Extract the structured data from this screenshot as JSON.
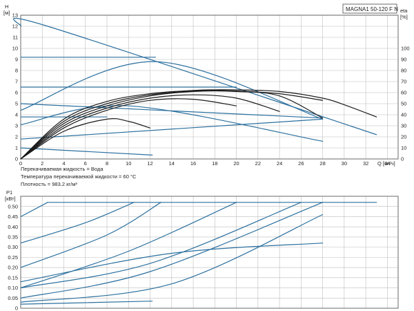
{
  "model_box": {
    "text": "MAGNA1 50-120 F N"
  },
  "fluid_notes": [
    "Перекачиваемая жидкость = Вода",
    "Температура перекачиваемой жидкости = 60 °C",
    "Плотность = 983.2 кг/м³"
  ],
  "colors": {
    "blue": "#2a6f9e",
    "black": "#1a1a1a",
    "grid": "#bdbdbd"
  },
  "chart_data": [
    {
      "type": "line",
      "name": "head",
      "ylabel_lines": [
        "H",
        "[м]"
      ],
      "y2label_lines": [
        "eta",
        "[%]"
      ],
      "xlabel": "Q [м³/ч]",
      "xlim": [
        0,
        35
      ],
      "ylim": [
        0,
        13
      ],
      "y2lim": [
        0,
        130
      ],
      "xticks": [
        0,
        2,
        4,
        6,
        8,
        10,
        12,
        14,
        16,
        18,
        20,
        22,
        24,
        26,
        28,
        30,
        32,
        34
      ],
      "yticks": [
        0,
        1,
        2,
        3,
        4,
        5,
        6,
        7,
        8,
        9,
        10,
        11,
        12,
        13
      ],
      "y2ticks": [
        0,
        10,
        20,
        30,
        40,
        50,
        60,
        70,
        80,
        90,
        100
      ],
      "series": [
        {
          "kind": "blue",
          "x": [
            0,
            2.5,
            33
          ],
          "y": [
            12,
            12,
            2.2
          ]
        },
        {
          "kind": "blue",
          "x": [
            0,
            12.5
          ],
          "y": [
            9.2,
            9.2
          ]
        },
        {
          "kind": "blue",
          "x": [
            0,
            12.5,
            28
          ],
          "y": [
            4.4,
            8.8,
            3.6
          ]
        },
        {
          "kind": "blue",
          "x": [
            0,
            20
          ],
          "y": [
            6.5,
            6.5
          ]
        },
        {
          "kind": "blue",
          "x": [
            0,
            10,
            28
          ],
          "y": [
            3.1,
            4.8,
            1.6
          ]
        },
        {
          "kind": "blue",
          "x": [
            0,
            28
          ],
          "y": [
            5.0,
            3.7
          ]
        },
        {
          "kind": "blue",
          "x": [
            0,
            8
          ],
          "y": [
            3.8,
            3.8
          ]
        },
        {
          "kind": "blue",
          "x": [
            0,
            28
          ],
          "y": [
            1.8,
            3.6
          ]
        },
        {
          "kind": "blue",
          "x": [
            0,
            12.2
          ],
          "y": [
            1.0,
            0.35
          ]
        },
        {
          "kind": "black",
          "x": [
            0,
            4,
            8,
            12,
            16,
            18,
            20,
            24,
            28,
            30,
            33
          ],
          "y": [
            0,
            3.6,
            5.2,
            5.9,
            6.2,
            6.25,
            6.25,
            6.1,
            5.5,
            4.9,
            3.8
          ]
        },
        {
          "kind": "black",
          "x": [
            0,
            4,
            8,
            12,
            16,
            18,
            20,
            24,
            28
          ],
          "y": [
            0,
            3.4,
            5.0,
            5.8,
            6.15,
            6.2,
            6.15,
            5.9,
            5.3
          ]
        },
        {
          "kind": "black",
          "x": [
            0,
            4,
            8,
            12,
            16,
            20,
            24,
            28
          ],
          "y": [
            0,
            3.2,
            4.8,
            5.7,
            6.1,
            6.1,
            5.7,
            3.7
          ]
        },
        {
          "kind": "black",
          "x": [
            0,
            4,
            8,
            12,
            16,
            20,
            24
          ],
          "y": [
            0,
            3.0,
            4.6,
            5.5,
            5.8,
            5.5,
            4.3
          ]
        },
        {
          "kind": "black",
          "x": [
            0,
            4,
            8,
            12,
            16,
            20
          ],
          "y": [
            0,
            2.8,
            4.4,
            5.3,
            5.4,
            4.8
          ]
        },
        {
          "kind": "black",
          "x": [
            0,
            4,
            8,
            10,
            12
          ],
          "y": [
            0,
            2.5,
            3.6,
            3.4,
            2.8
          ]
        }
      ]
    },
    {
      "type": "line",
      "name": "power",
      "ylabel_lines": [
        "P1",
        "[кВт]"
      ],
      "xlim": [
        0,
        35
      ],
      "ylim": [
        0,
        0.55
      ],
      "yticks": [
        0,
        0.05,
        0.1,
        0.15,
        0.2,
        0.25,
        0.3,
        0.35,
        0.4,
        0.45,
        0.5
      ],
      "ytick_labels": [
        "0",
        "0.05",
        "0.10",
        "0.15",
        "0.20",
        "0.25",
        "0.30",
        "0.35",
        "0.40",
        "0.45",
        "0.50"
      ],
      "series": [
        {
          "kind": "blue",
          "x": [
            2.5,
            33
          ],
          "y": [
            0.52,
            0.52
          ]
        },
        {
          "kind": "blue",
          "x": [
            0,
            2.5
          ],
          "y": [
            0.45,
            0.52
          ]
        },
        {
          "kind": "blue",
          "x": [
            0,
            6,
            10.5
          ],
          "y": [
            0.32,
            0.42,
            0.52
          ]
        },
        {
          "kind": "blue",
          "x": [
            0,
            8,
            13
          ],
          "y": [
            0.2,
            0.36,
            0.52
          ]
        },
        {
          "kind": "blue",
          "x": [
            0,
            10,
            20
          ],
          "y": [
            0.1,
            0.28,
            0.52
          ]
        },
        {
          "kind": "blue",
          "x": [
            0,
            12,
            26
          ],
          "y": [
            0.1,
            0.22,
            0.52
          ]
        },
        {
          "kind": "blue",
          "x": [
            0,
            12,
            28
          ],
          "y": [
            0.05,
            0.18,
            0.52
          ]
        },
        {
          "kind": "blue",
          "x": [
            0,
            14,
            28
          ],
          "y": [
            0.03,
            0.12,
            0.46
          ]
        },
        {
          "kind": "blue",
          "x": [
            0,
            14,
            28
          ],
          "y": [
            0.13,
            0.27,
            0.32
          ]
        },
        {
          "kind": "blue",
          "x": [
            0,
            12.2
          ],
          "y": [
            0.02,
            0.035
          ]
        }
      ]
    }
  ]
}
